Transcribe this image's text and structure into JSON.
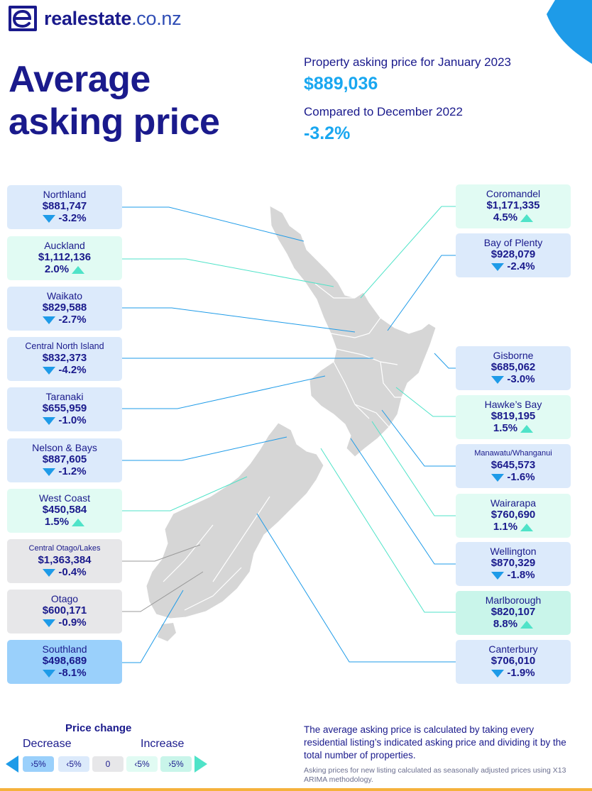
{
  "brand": {
    "name": "realestate",
    "tld": ".co.nz",
    "icon": "realestate-logo-icon"
  },
  "title": {
    "line1": "Average",
    "line2": "asking price"
  },
  "summary": {
    "label1": "Property asking price for January 2023",
    "value1": "$889,036",
    "label2": "Compared to December 2022",
    "value2": "-3.2%"
  },
  "regions": [
    {
      "name": "Northland",
      "price": "$881,747",
      "change": "-3.2%",
      "direction": "down"
    },
    {
      "name": "Auckland",
      "price": "$1,112,136",
      "change": "2.0%",
      "direction": "up"
    },
    {
      "name": "Waikato",
      "price": "$829,588",
      "change": "-2.7%",
      "direction": "down"
    },
    {
      "name": "Central North Island",
      "price": "$832,373",
      "change": "-4.2%",
      "direction": "down"
    },
    {
      "name": "Taranaki",
      "price": "$655,959",
      "change": "-1.0%",
      "direction": "down"
    },
    {
      "name": "Nelson & Bays",
      "price": "$887,605",
      "change": "-1.2%",
      "direction": "down"
    },
    {
      "name": "West Coast",
      "price": "$450,584",
      "change": "1.5%",
      "direction": "up"
    },
    {
      "name": "Central Otago/Lakes",
      "price": "$1,363,384",
      "change": "-0.4%",
      "direction": "down"
    },
    {
      "name": "Otago",
      "price": "$600,171",
      "change": "-0.9%",
      "direction": "down"
    },
    {
      "name": "Southland",
      "price": "$498,689",
      "change": "-8.1%",
      "direction": "down"
    },
    {
      "name": "Coromandel",
      "price": "$1,171,335",
      "change": "4.5%",
      "direction": "up"
    },
    {
      "name": "Bay of Plenty",
      "price": "$928,079",
      "change": "-2.4%",
      "direction": "down"
    },
    {
      "name": "Gisborne",
      "price": "$685,062",
      "change": "-3.0%",
      "direction": "down"
    },
    {
      "name": "Hawke’s Bay",
      "price": "$819,195",
      "change": "1.5%",
      "direction": "up"
    },
    {
      "name": "Manawatu/Whanganui",
      "price": "$645,573",
      "change": "-1.6%",
      "direction": "down"
    },
    {
      "name": "Wairarapa",
      "price": "$760,690",
      "change": "1.1%",
      "direction": "up"
    },
    {
      "name": "Wellington",
      "price": "$870,329",
      "change": "-1.8%",
      "direction": "down"
    },
    {
      "name": "Marlborough",
      "price": "$820,107",
      "change": "8.8%",
      "direction": "up"
    },
    {
      "name": "Canterbury",
      "price": "$706,010",
      "change": "-1.9%",
      "direction": "down"
    }
  ],
  "legend": {
    "title": "Price change",
    "decrease": "Decrease",
    "increase": "Increase",
    "swatches": [
      "›5%",
      "‹5%",
      "0",
      "‹5%",
      "›5%"
    ],
    "colors": {
      "big_decrease": "#9ad0fb",
      "decrease": "#dceafb",
      "zero": "#e7e7e9",
      "increase": "#e1fbf3",
      "big_increase": "#c9f5ea"
    }
  },
  "note": "The average asking price is calculated by taking every residential listing’s indicated asking price and dividing it by the total number of properties.",
  "footnote": "Asking prices for new listing calculated as seasonally adjusted prices using X13 ARIMA methodology.",
  "colors": {
    "navy": "#1a1a8c",
    "accent_blue": "#19a7f0",
    "down_arrow": "#1e9be8",
    "up_arrow": "#4fe3c8",
    "map": "#d6d6d6"
  }
}
